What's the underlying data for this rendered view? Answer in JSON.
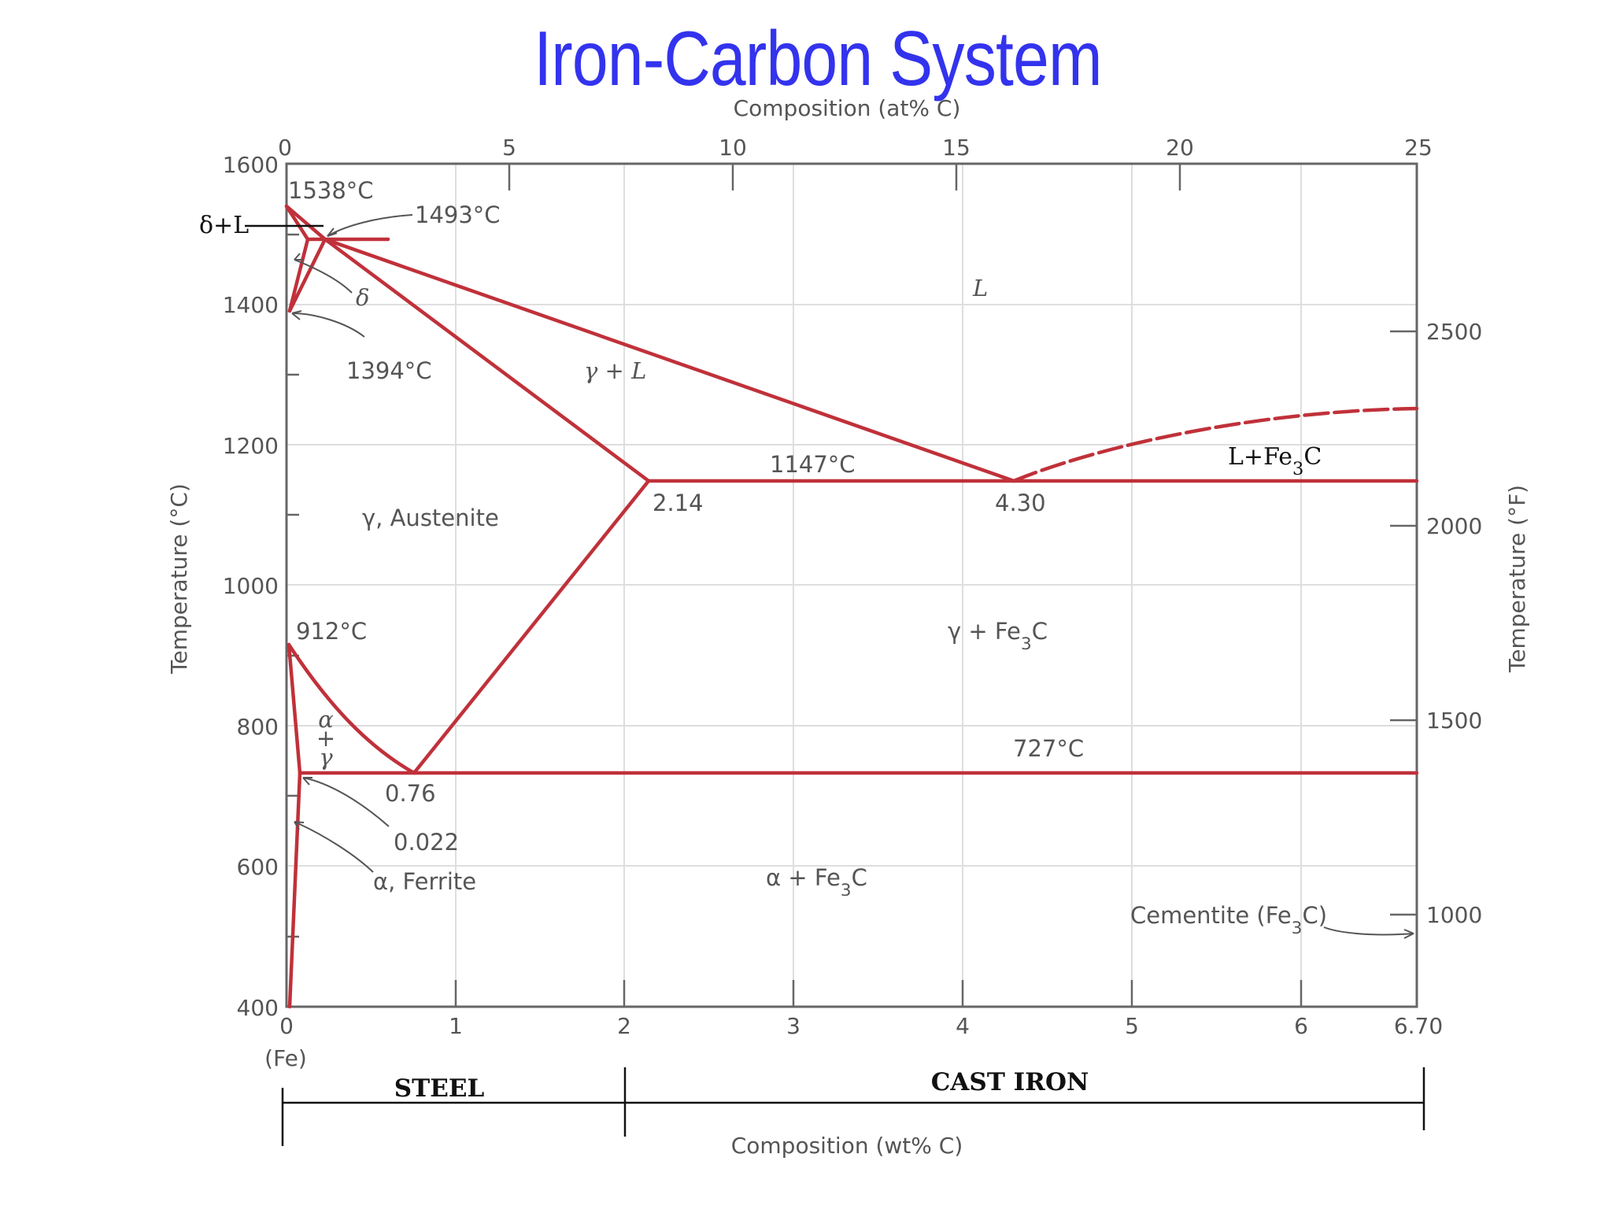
{
  "title": "Iron-Carbon System",
  "axes": {
    "top_title": "Composition (at% C)",
    "bottom_title": "Composition (wt% C)",
    "left_title": "Temperature (°C)",
    "right_title": "Temperature (°F)",
    "top_ticks": [
      "0",
      "5",
      "10",
      "15",
      "20",
      "25"
    ],
    "bottom_ticks": [
      "0",
      "1",
      "2",
      "3",
      "4",
      "5",
      "6",
      "6.70"
    ],
    "bottom_sub": "(Fe)",
    "left_ticks": [
      "1600",
      "1400",
      "1200",
      "1000",
      "800",
      "600",
      "400"
    ],
    "right_ticks": [
      "2500",
      "2000",
      "1500",
      "1000"
    ]
  },
  "points": {
    "t1538": "1538°C",
    "t1493": "1493°C",
    "t1394": "1394°C",
    "t1147": "1147°C",
    "t912": "912°C",
    "t727": "727°C",
    "c214": "2.14",
    "c430": "4.30",
    "c076": "0.76",
    "c0022": "0.022"
  },
  "regions": {
    "liquid": "L",
    "delta": "δ",
    "delta_liquid": "δ+L",
    "gamma_liquid": "γ + L",
    "austenite": "γ, Austenite",
    "gamma_cementite": "γ + Fe3C",
    "alpha": "α",
    "plus": "+",
    "gamma": "γ",
    "ferrite": "α, Ferrite",
    "alpha_cementite": "α + Fe3C",
    "liquid_cementite": "L+Fe3C",
    "cementite": "Cementite (Fe3C)"
  },
  "bars": {
    "steel": "STEEL",
    "cast_iron": "CAST IRON"
  },
  "colors": {
    "title": "#3333ee",
    "phase_lines": "#c0313a",
    "grid": "#dedede",
    "text": "#555555"
  }
}
